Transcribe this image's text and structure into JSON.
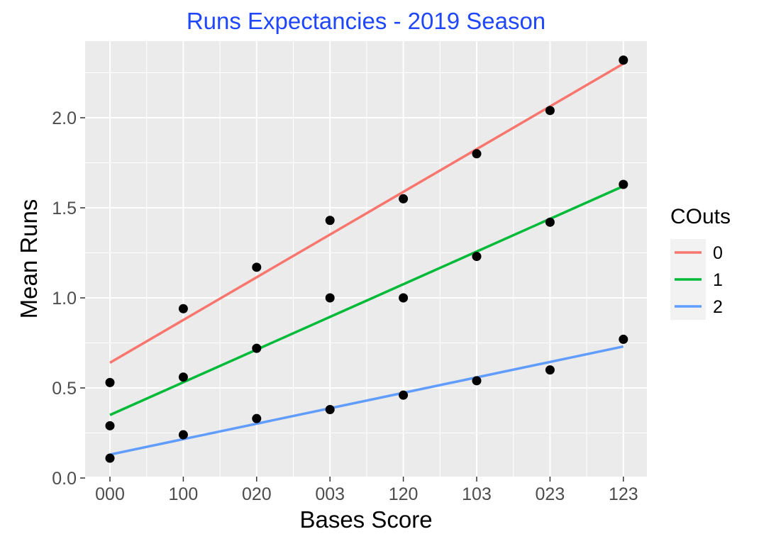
{
  "chart_data": {
    "type": "scatter",
    "title": "Runs Expectancies - 2019 Season",
    "title_color": "#1f47ff",
    "xlabel": "Bases Score",
    "ylabel": "Mean Runs",
    "categories": [
      "000",
      "100",
      "020",
      "003",
      "120",
      "103",
      "023",
      "123"
    ],
    "ylim": [
      0,
      2.33
    ],
    "y_ticks": [
      "0.0",
      "0.5",
      "1.0",
      "1.5",
      "2.0"
    ],
    "grid": true,
    "panel_background": "#ebebeb",
    "legend_position": "right",
    "legend_title": "COuts",
    "point_color": "#000000",
    "series": [
      {
        "name": "0",
        "color": "#f8766d",
        "values": [
          0.53,
          0.94,
          1.17,
          1.43,
          1.55,
          1.8,
          2.04,
          2.32
        ],
        "fit": [
          0.64,
          2.3
        ]
      },
      {
        "name": "1",
        "color": "#00ba38",
        "values": [
          0.29,
          0.56,
          0.72,
          1.0,
          1.0,
          1.23,
          1.42,
          1.63
        ],
        "fit": [
          0.35,
          1.62
        ]
      },
      {
        "name": "2",
        "color": "#619cff",
        "values": [
          0.11,
          0.24,
          0.33,
          0.38,
          0.46,
          0.54,
          0.6,
          0.77
        ],
        "fit": [
          0.13,
          0.73
        ]
      }
    ]
  }
}
